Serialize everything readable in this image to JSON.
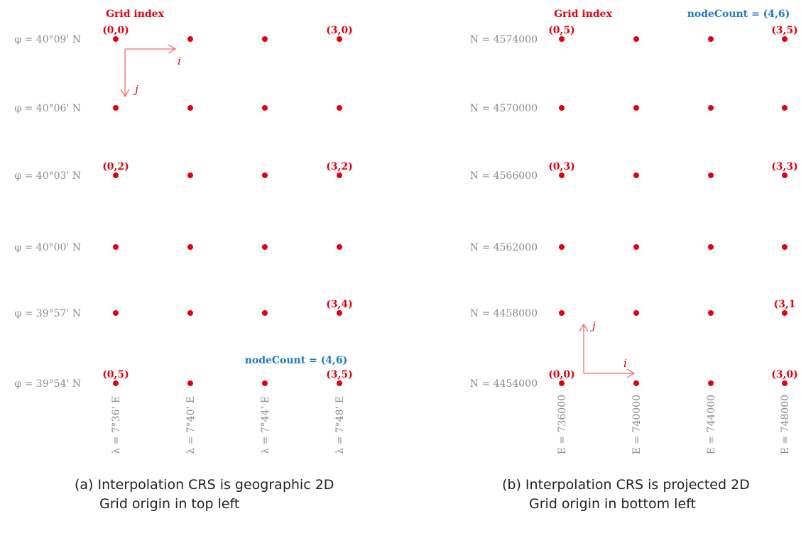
{
  "panels": [
    {
      "id": "geographic",
      "header": "Grid index",
      "rows": [
        "φ = 40°09' N",
        "φ = 40°06' N",
        "φ = 40°03' N",
        "φ = 40°00' N",
        "φ = 39°57' N",
        "φ = 39°54' N"
      ],
      "cols": [
        "λ = 7°36' E",
        "λ = 7°40' E",
        "λ = 7°44' E",
        "λ = 7°48' E"
      ],
      "index_labels": [
        {
          "c": 0,
          "r": 0,
          "text": "(0,0)"
        },
        {
          "c": 3,
          "r": 0,
          "text": "(3,0)"
        },
        {
          "c": 0,
          "r": 2,
          "text": "(0,2)"
        },
        {
          "c": 3,
          "r": 2,
          "text": "(3,2)"
        },
        {
          "c": 3,
          "r": 4,
          "text": "(3,4)"
        },
        {
          "c": 0,
          "r": 5,
          "text": "(0,5)"
        },
        {
          "c": 3,
          "r": 5,
          "text": "(3,5)"
        }
      ],
      "node_count": "nodeCount = (4,6)",
      "axis_i": "i",
      "axis_j": "j",
      "caption_line1": "(a) Interpolation CRS is geographic 2D",
      "caption_line2": "Grid origin in top left"
    },
    {
      "id": "projected",
      "header": "Grid index",
      "rows": [
        "N = 4574000",
        "N = 4570000",
        "N = 4566000",
        "N = 4562000",
        "N = 4458000",
        "N = 4454000"
      ],
      "cols": [
        "E = 736000",
        "E = 740000",
        "E = 744000",
        "E = 748000"
      ],
      "index_labels": [
        {
          "c": 0,
          "r": 0,
          "text": "(0,5)"
        },
        {
          "c": 3,
          "r": 0,
          "text": "(3,5)"
        },
        {
          "c": 0,
          "r": 2,
          "text": "(0,3)"
        },
        {
          "c": 3,
          "r": 2,
          "text": "(3,3)"
        },
        {
          "c": 3,
          "r": 4,
          "text": "(3,1"
        },
        {
          "c": 0,
          "r": 5,
          "text": "(0,0)"
        },
        {
          "c": 3,
          "r": 5,
          "text": "(3,0)"
        }
      ],
      "node_count": "nodeCount = (4,6)",
      "axis_i": "i",
      "axis_j": "j",
      "caption_line1": "(b) Interpolation CRS is projected 2D",
      "caption_line2": "Grid origin in bottom left"
    }
  ],
  "colors": {
    "node": "#e3000f",
    "label": "#8c8c8c",
    "count": "#1f77c4",
    "arrow": "#f06a6a"
  }
}
